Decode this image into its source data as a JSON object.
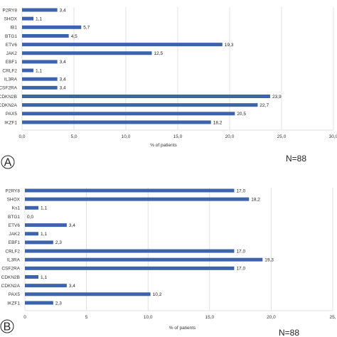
{
  "chart_data": [
    {
      "type": "bar",
      "orientation": "horizontal",
      "panel": "A",
      "categories": [
        "P2RY8",
        "SHOX",
        "IB1",
        "BTG1",
        "ETV6",
        "JAK2",
        "EBF1",
        "CRLF2",
        "IL3RA",
        "CSF2RA",
        "CDKN2B",
        "CDKN2A",
        "PAX5",
        "IKZF1"
      ],
      "values": [
        3.4,
        1.1,
        5.7,
        4.5,
        19.3,
        12.5,
        3.4,
        1.1,
        3.4,
        3.4,
        23.9,
        22.7,
        20.5,
        18.2
      ],
      "value_labels": [
        "3,4",
        "1,1",
        "5,7",
        "4,5",
        "19,3",
        "12,5",
        "3,4",
        "1,1",
        "3,4",
        "3,4",
        "23,9",
        "22,7",
        "20,5",
        "18,2"
      ],
      "xlim": [
        0,
        30
      ],
      "xticks": [
        "0,0",
        "5,0",
        "10,0",
        "15,0",
        "20,0",
        "25,0",
        "30,0"
      ],
      "xlabel": "% of patients",
      "bar_color": "#3e63ad",
      "grid": true,
      "n_label": "N=88"
    },
    {
      "type": "bar",
      "orientation": "horizontal",
      "panel": "B",
      "categories": [
        "P2RY8",
        "SHOX",
        "Ks1",
        "BTG1",
        "ETV6",
        "JAK2",
        "EBF1",
        "CRLF2",
        "IL3RA",
        "CSF2RA",
        "CDKN2B",
        "CDKN2A",
        "PAX5",
        "IKZF1"
      ],
      "values": [
        17.0,
        18.2,
        1.1,
        0.0,
        3.4,
        1.1,
        2.3,
        17.0,
        19.3,
        17.0,
        1.1,
        3.4,
        10.2,
        2.3
      ],
      "value_labels": [
        "17,0",
        "18,2",
        "1,1",
        "0,0",
        "3,4",
        "1,1",
        "2,3",
        "17,0",
        "19,3",
        "17,0",
        "1,1",
        "3,4",
        "10,2",
        "2,3"
      ],
      "xlim": [
        0,
        25
      ],
      "xticks": [
        "0",
        "5",
        "10,0",
        "15,0",
        "20,0",
        "25,"
      ],
      "xlabel": "% of patients",
      "bar_color": "#3e63ad",
      "grid": true,
      "n_label": "N=88"
    }
  ]
}
